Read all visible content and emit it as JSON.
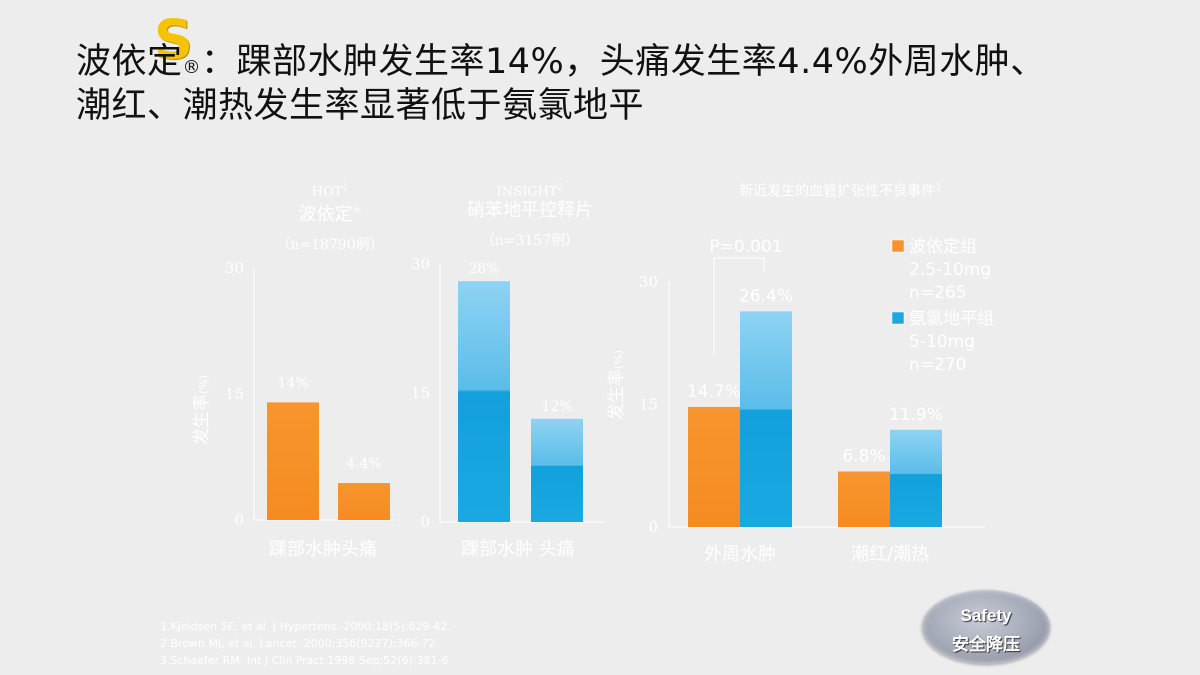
{
  "slide": {
    "logo_letter": "S",
    "title_line1_a": "波依定",
    "title_reg": "®",
    "title_line1_b": "：踝部水肿发生率14%，头痛发生率4.4%外周水肿、",
    "title_line2": "潮红、潮热发生率显著低于氨氯地平",
    "references": [
      "1.Kjeldsen SE, et al. J Hypertens. 2000;18(5):629-42.",
      "2.Brown MJ, et al. Lancet. 2000;356(9227):366-72.",
      "3.Schaefer RM. Int J Clin Pract.1998 Sep;52(6):381-6"
    ],
    "badge": {
      "line1": "Safety",
      "line2": "安全降压"
    }
  },
  "chart_data": [
    {
      "type": "bar",
      "study": "HOT",
      "study_sup": "1",
      "drug": "波依定",
      "drug_sup": "®",
      "n_label": "（n=18790例）",
      "ylabel": "发生率",
      "ylabel_unit": "(%)",
      "ylim": [
        0,
        30
      ],
      "yticks": [
        0,
        15,
        30
      ],
      "categories": [
        "踝部水肿",
        "头痛"
      ],
      "x_label_text": "踝部水肿头痛",
      "values": [
        14,
        4.4
      ],
      "data_labels": [
        "14%",
        "4.4%"
      ],
      "color": "#f7922c"
    },
    {
      "type": "bar",
      "study": "INSIGHT",
      "study_sup": "2",
      "drug": "硝苯地平控释片",
      "n_label": "（n=3157例）",
      "ylim": [
        0,
        30
      ],
      "yticks": [
        0,
        15,
        30
      ],
      "categories": [
        "踝部水肿",
        "头痛"
      ],
      "x_label_text": "踝部水肿 头痛",
      "values": [
        28,
        12
      ],
      "data_labels": [
        "28%",
        "12%"
      ],
      "color": "#1ea6e0"
    },
    {
      "type": "bar",
      "title": "新近发生的血管扩张性不良事件",
      "title_sup": "3",
      "ylabel": "发生率",
      "ylabel_unit": "(%)",
      "ylim": [
        0,
        30
      ],
      "yticks": [
        0,
        15,
        30
      ],
      "categories": [
        "外周水肿",
        "潮红/潮热"
      ],
      "series": [
        {
          "name": "波依定组",
          "detail1": "2.5-10mg",
          "detail2": "n=265",
          "values": [
            14.7,
            6.8
          ],
          "data_labels": [
            "14.7%",
            "6.8%"
          ],
          "color": "#f7922c"
        },
        {
          "name": "氨氯地平组",
          "detail1": "5-10mg",
          "detail2": "n=270",
          "values": [
            26.4,
            11.9
          ],
          "data_labels": [
            "26.4%",
            "11.9%"
          ],
          "color": "#1ea6e0"
        }
      ],
      "annotation": "P=0.001",
      "legend_position": "top-right"
    }
  ]
}
